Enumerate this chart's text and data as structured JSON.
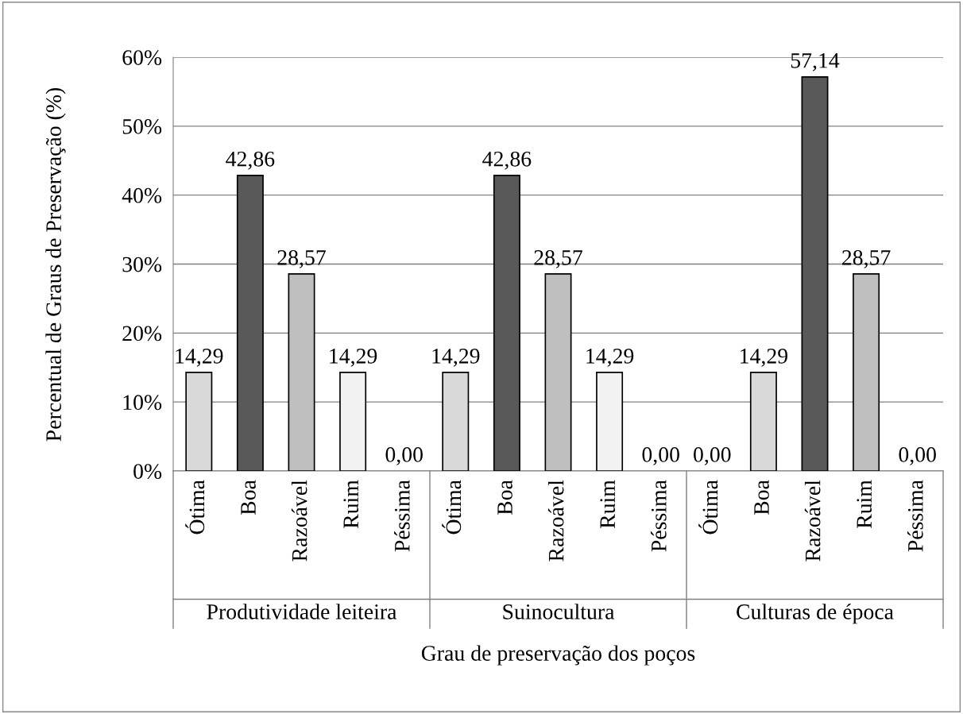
{
  "chart_data": {
    "type": "bar",
    "xlabel": "Grau de preservação dos poços",
    "ylabel": "Percentual de Graus de Preservação (%)",
    "categories": [
      "Ótima",
      "Boa",
      "Razoável",
      "Ruim",
      "Péssima",
      "Ótima",
      "Boa",
      "Razoável",
      "Ruim",
      "Péssima",
      "Ótima",
      "Boa",
      "Razoável",
      "Ruim",
      "Péssima"
    ],
    "values": [
      14.29,
      42.86,
      28.57,
      14.29,
      0,
      14.29,
      42.86,
      28.57,
      14.29,
      0,
      0,
      14.29,
      57.14,
      28.57,
      0
    ],
    "value_labels": [
      "14,29",
      "42,86",
      "28,57",
      "14,29",
      "0,00",
      "14,29",
      "42,86",
      "28,57",
      "14,29",
      "0,00",
      "0,00",
      "14,29",
      "57,14",
      "28,57",
      "0,00"
    ],
    "colors": [
      "#d9d9d9",
      "#595959",
      "#bfbfbf",
      "#f2f2f2",
      "#ffffff",
      "#d9d9d9",
      "#595959",
      "#bfbfbf",
      "#f2f2f2",
      "#ffffff",
      "#d9d9d9",
      "#d9d9d9",
      "#595959",
      "#bfbfbf",
      "#f2f2f2"
    ],
    "annotations": [
      "Produtividade leiteira",
      "Suinocultura",
      "Culturas de época"
    ],
    "ylim": [
      0,
      60
    ],
    "yticks": [
      {
        "value": 0,
        "label": "0%"
      },
      {
        "value": 10,
        "label": "10%"
      },
      {
        "value": 20,
        "label": "20%"
      },
      {
        "value": 30,
        "label": "30%"
      },
      {
        "value": 40,
        "label": "40%"
      },
      {
        "value": 50,
        "label": "50%"
      },
      {
        "value": 60,
        "label": "60%"
      }
    ],
    "grid": "y",
    "legend": false
  }
}
